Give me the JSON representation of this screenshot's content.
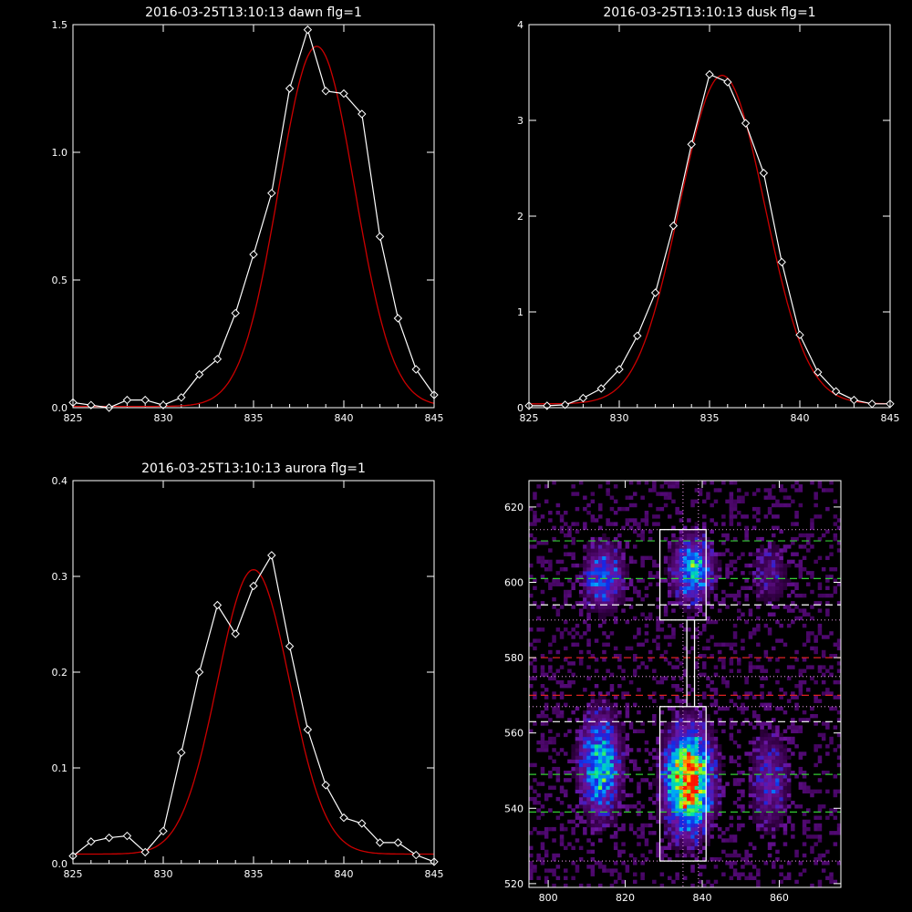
{
  "chart_data": [
    {
      "id": "dawn",
      "type": "line",
      "title": "2016-03-25T13:10:13 dawn flg=1",
      "xlabel": "",
      "ylabel": "",
      "xlim": [
        825,
        845
      ],
      "ylim": [
        0,
        1.5
      ],
      "xticks": [
        825,
        830,
        835,
        840,
        845
      ],
      "yticks": [
        0,
        0.5,
        1.0,
        1.5
      ],
      "ytick_labels": [
        "0.0",
        "0.5",
        "1.0",
        "1.5"
      ],
      "colors": {
        "data": "#ffffff",
        "fit": "#cc0000"
      },
      "series": [
        {
          "role": "data",
          "marker": "diamond",
          "x": [
            825,
            826,
            827,
            828,
            829,
            830,
            831,
            832,
            833,
            834,
            835,
            836,
            837,
            838,
            839,
            840,
            841,
            842,
            843,
            844,
            845
          ],
          "y": [
            0.02,
            0.01,
            0.0,
            0.03,
            0.03,
            0.01,
            0.04,
            0.13,
            0.19,
            0.37,
            0.6,
            0.84,
            1.25,
            1.48,
            1.24,
            1.23,
            1.15,
            0.67,
            0.35,
            0.15,
            0.05
          ]
        },
        {
          "role": "fit",
          "amplitude": 1.41,
          "center": 838.5,
          "sigma": 2.1,
          "offset": 0.005
        }
      ]
    },
    {
      "id": "dusk",
      "type": "line",
      "title": "2016-03-25T13:10:13 dusk flg=1",
      "xlabel": "",
      "ylabel": "",
      "xlim": [
        825,
        845
      ],
      "ylim": [
        0,
        4
      ],
      "xticks": [
        825,
        830,
        835,
        840,
        845
      ],
      "yticks": [
        0,
        1,
        2,
        3,
        4
      ],
      "ytick_labels": [
        "0",
        "1",
        "2",
        "3",
        "4"
      ],
      "colors": {
        "data": "#ffffff",
        "fit": "#cc0000"
      },
      "series": [
        {
          "role": "data",
          "marker": "diamond",
          "x": [
            825,
            826,
            827,
            828,
            829,
            830,
            831,
            832,
            833,
            834,
            835,
            836,
            837,
            838,
            839,
            840,
            841,
            842,
            843,
            844,
            845
          ],
          "y": [
            0.02,
            0.02,
            0.03,
            0.1,
            0.2,
            0.4,
            0.75,
            1.2,
            1.9,
            2.75,
            3.48,
            3.4,
            2.97,
            2.45,
            1.52,
            0.76,
            0.37,
            0.17,
            0.08,
            0.04,
            0.04
          ]
        },
        {
          "role": "fit",
          "amplitude": 3.43,
          "center": 835.7,
          "sigma": 2.35,
          "offset": 0.04
        }
      ]
    },
    {
      "id": "aurora",
      "type": "line",
      "title": "2016-03-25T13:10:13 aurora flg=1",
      "xlabel": "",
      "ylabel": "",
      "xlim": [
        825,
        845
      ],
      "ylim": [
        0,
        0.4
      ],
      "xticks": [
        825,
        830,
        835,
        840,
        845
      ],
      "yticks": [
        0,
        0.1,
        0.2,
        0.3,
        0.4
      ],
      "ytick_labels": [
        "0.0",
        "0.1",
        "0.2",
        "0.3",
        "0.4"
      ],
      "colors": {
        "data": "#ffffff",
        "fit": "#cc0000"
      },
      "series": [
        {
          "role": "data",
          "marker": "diamond",
          "x": [
            825,
            826,
            827,
            828,
            829,
            830,
            831,
            832,
            833,
            834,
            835,
            836,
            837,
            838,
            839,
            840,
            841,
            842,
            843,
            844,
            845
          ],
          "y": [
            0.008,
            0.023,
            0.027,
            0.029,
            0.012,
            0.034,
            0.116,
            0.2,
            0.27,
            0.24,
            0.29,
            0.322,
            0.227,
            0.14,
            0.082,
            0.048,
            0.042,
            0.022,
            0.022,
            0.009,
            0.002
          ]
        },
        {
          "role": "fit",
          "amplitude": 0.297,
          "center": 835.0,
          "sigma": 2.0,
          "offset": 0.01
        }
      ]
    },
    {
      "id": "image",
      "type": "heatmap",
      "title": "",
      "xlabel": "",
      "ylabel": "",
      "xlim": [
        795,
        876
      ],
      "ylim": [
        519,
        627
      ],
      "xticks": [
        800,
        820,
        840,
        860
      ],
      "yticks": [
        520,
        540,
        560,
        580,
        600,
        620
      ],
      "blobs": [
        {
          "x": 814,
          "y": 601,
          "intensity": 0.42
        },
        {
          "x": 837,
          "y": 603,
          "intensity": 0.55
        },
        {
          "x": 857,
          "y": 602,
          "intensity": 0.2
        },
        {
          "x": 813,
          "y": 551,
          "intensity": 0.6
        },
        {
          "x": 836,
          "y": 547,
          "intensity": 1.0
        },
        {
          "x": 857,
          "y": 547,
          "intensity": 0.28
        }
      ],
      "boxes": [
        [
          829,
          841,
          590,
          614
        ],
        [
          829,
          841,
          526,
          567
        ]
      ],
      "connector_x": [
        836,
        838
      ],
      "connector_y": [
        567,
        590
      ],
      "vlines": [
        835,
        839
      ],
      "hlines": [
        {
          "y": 611,
          "style": "dash",
          "color": "#33cc33"
        },
        {
          "y": 601,
          "style": "dash",
          "color": "#33cc33"
        },
        {
          "y": 594,
          "style": "dash",
          "color": "#ffffff"
        },
        {
          "y": 580,
          "style": "dash",
          "color": "#dd2222"
        },
        {
          "y": 570,
          "style": "dash",
          "color": "#dd2222"
        },
        {
          "y": 563,
          "style": "dash",
          "color": "#ffffff"
        },
        {
          "y": 549,
          "style": "dash",
          "color": "#33cc33"
        },
        {
          "y": 539,
          "style": "dash",
          "color": "#33cc33"
        },
        {
          "y": 614,
          "style": "dot",
          "color": "#cc88cc"
        },
        {
          "y": 590,
          "style": "dot",
          "color": "#cc88cc"
        },
        {
          "y": 575,
          "style": "dot",
          "color": "#cc88cc"
        },
        {
          "y": 567,
          "style": "dot",
          "color": "#cc88cc"
        },
        {
          "y": 526,
          "style": "dot",
          "color": "#cc88cc"
        }
      ]
    }
  ]
}
